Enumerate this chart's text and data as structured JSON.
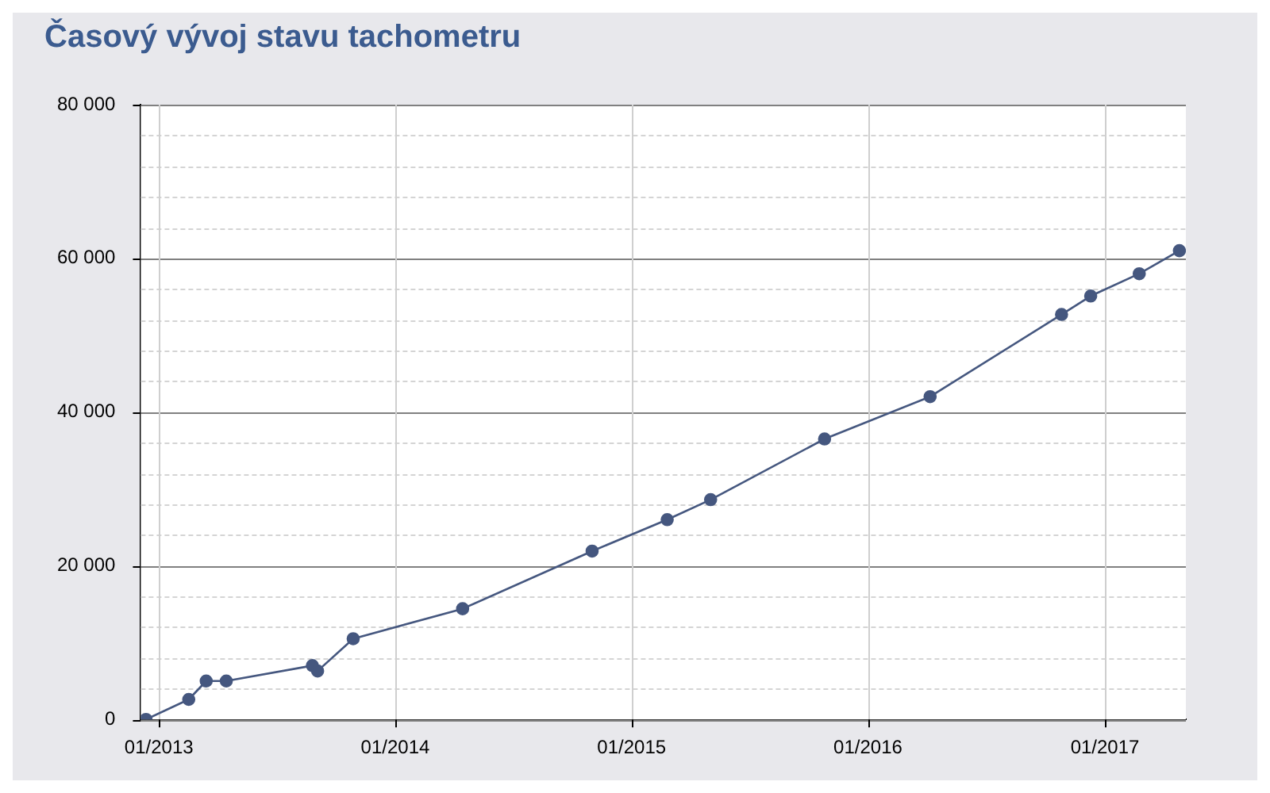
{
  "chart_data": {
    "type": "line",
    "title": "Časový vývoj stavu tachometru",
    "x": [
      "2012-12-12",
      "2013-02-16",
      "2013-03-15",
      "2013-04-15",
      "2013-08-26",
      "2013-09-03",
      "2013-10-28",
      "2014-04-15",
      "2014-11-01",
      "2015-02-25",
      "2015-05-03",
      "2015-10-26",
      "2016-04-06",
      "2016-10-26",
      "2016-12-10",
      "2017-02-23",
      "2017-04-26"
    ],
    "series": [
      {
        "color": "#45577f",
        "values": [
          0,
          2600,
          5000,
          5000,
          7000,
          6300,
          10500,
          14400,
          21900,
          26000,
          28600,
          36500,
          42000,
          52700,
          55100,
          58000,
          61000
        ]
      }
    ],
    "xlim": [
      "2012-12-04",
      "2017-05-06"
    ],
    "xticks": [
      {
        "value": "2013-01-01",
        "label": "01/2013"
      },
      {
        "value": "2014-01-01",
        "label": "01/2014"
      },
      {
        "value": "2015-01-01",
        "label": "01/2015"
      },
      {
        "value": "2016-01-01",
        "label": "01/2016"
      },
      {
        "value": "2017-01-01",
        "label": "01/2017"
      }
    ],
    "ylim": [
      0,
      80000
    ],
    "yticks": [
      {
        "value": 0,
        "label": "0"
      },
      {
        "value": 4000,
        "label": null
      },
      {
        "value": 8000,
        "label": null
      },
      {
        "value": 12000,
        "label": null
      },
      {
        "value": 16000,
        "label": null
      },
      {
        "value": 20000,
        "label": "20 000"
      },
      {
        "value": 24000,
        "label": null
      },
      {
        "value": 28000,
        "label": null
      },
      {
        "value": 32000,
        "label": null
      },
      {
        "value": 36000,
        "label": null
      },
      {
        "value": 40000,
        "label": "40 000"
      },
      {
        "value": 44000,
        "label": null
      },
      {
        "value": 48000,
        "label": null
      },
      {
        "value": 52000,
        "label": null
      },
      {
        "value": 56000,
        "label": null
      },
      {
        "value": 60000,
        "label": "60 000"
      },
      {
        "value": 64000,
        "label": null
      },
      {
        "value": 68000,
        "label": null
      },
      {
        "value": 72000,
        "label": null
      },
      {
        "value": 76000,
        "label": null
      },
      {
        "value": 80000,
        "label": "80 000"
      }
    ],
    "grid": true,
    "marker": "circle",
    "line_style": "solid",
    "legend": false
  }
}
